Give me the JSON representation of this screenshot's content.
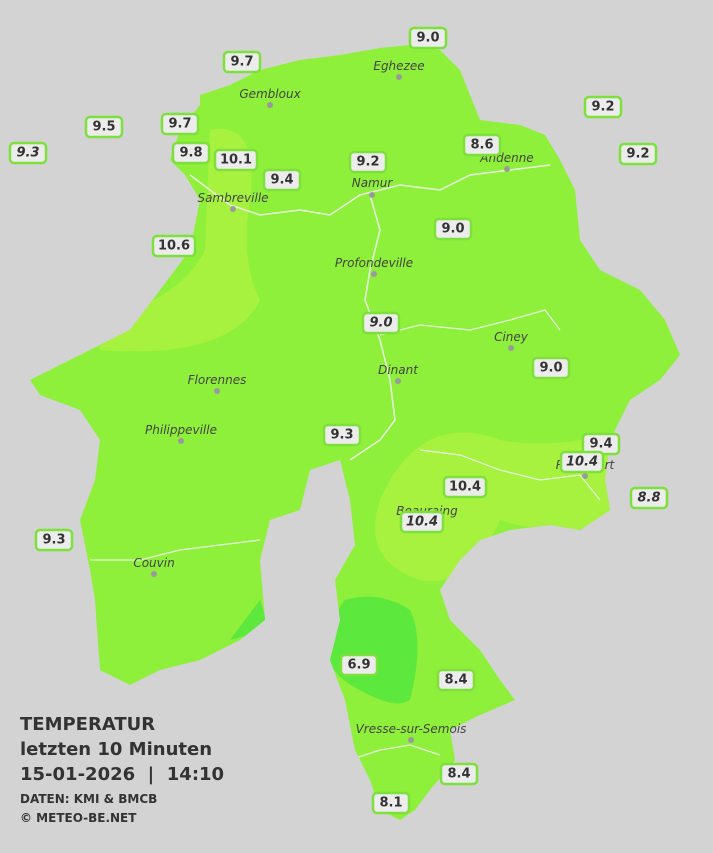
{
  "title": {
    "line1": "TEMPERATUR",
    "line2": "letzten 10 Minuten",
    "line3": "15-01-2026  |  14:10",
    "source": "DATEN: KMI & BMCB",
    "copyright": "© METEO-BE.NET"
  },
  "cities": [
    "Eghezee",
    "Gembloux",
    "Andenne",
    "Namur",
    "Sambreville",
    "Profondeville",
    "Ciney",
    "Dinant",
    "Florennes",
    "Philippeville",
    "Rochefort",
    "Beauraing",
    "Couvin",
    "Vresse-sur-Semois"
  ],
  "stations": [
    {
      "label": "9.0"
    },
    {
      "label": "9.7"
    },
    {
      "label": "9.2"
    },
    {
      "label": "9.5"
    },
    {
      "label": "9.7"
    },
    {
      "label": "9.3",
      "italic": true
    },
    {
      "label": "9.8"
    },
    {
      "label": "10.1"
    },
    {
      "label": "9.2"
    },
    {
      "label": "8.6"
    },
    {
      "label": "9.2"
    },
    {
      "label": "9.4"
    },
    {
      "label": "9.0"
    },
    {
      "label": "10.6"
    },
    {
      "label": "9.0",
      "italic": true
    },
    {
      "label": "9.0"
    },
    {
      "label": "9.3"
    },
    {
      "label": "9.4"
    },
    {
      "label": "10.4",
      "italic": true
    },
    {
      "label": "10.4"
    },
    {
      "label": "8.8",
      "italic": true
    },
    {
      "label": "10.4",
      "italic": true
    },
    {
      "label": "9.3"
    },
    {
      "label": "6.9"
    },
    {
      "label": "8.4"
    },
    {
      "label": "8.4"
    },
    {
      "label": "8.1"
    }
  ]
}
